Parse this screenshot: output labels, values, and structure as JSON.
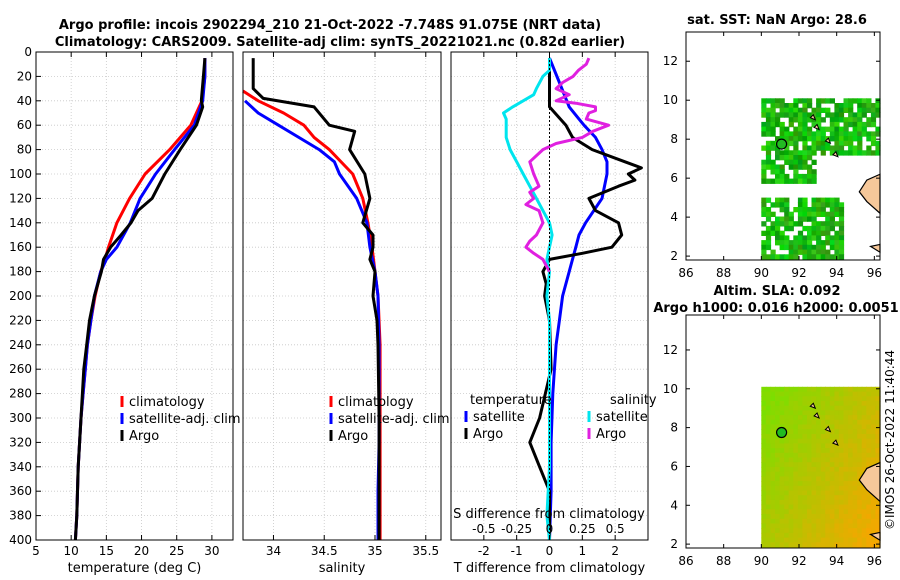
{
  "title": {
    "line1": "Argo profile: incois 2902294_210 21-Oct-2022 -7.748S 91.075E (NRT data)",
    "line2": "Climatology: CARS2009. Satellite-adj clim: synTS_20221021.nc (0.82d earlier)"
  },
  "footer": "©IMOS 26-Oct-2022 11:40:44",
  "colors": {
    "climatology": "#ff0000",
    "satellite": "#0000ff",
    "argo": "#000000",
    "cyan": "#00e5ee",
    "magenta": "#e020e0",
    "land": "#f6c89a"
  },
  "chart_data": [
    {
      "type": "line",
      "id": "temperature",
      "xlabel": "temperature (deg C)",
      "ylabel": "",
      "xlim": [
        5,
        33
      ],
      "ylim": [
        400,
        0
      ],
      "xticks": [
        5,
        10,
        15,
        20,
        25,
        30
      ],
      "yticks": [
        0,
        20,
        40,
        60,
        80,
        100,
        120,
        140,
        160,
        180,
        200,
        220,
        240,
        260,
        280,
        300,
        320,
        340,
        360,
        380,
        400
      ],
      "legend": [
        "climatology",
        "satellite-adj. clim",
        "Argo"
      ],
      "series": [
        {
          "name": "climatology",
          "color": "#ff0000",
          "depth": [
            5,
            20,
            40,
            60,
            80,
            100,
            120,
            140,
            160,
            170,
            180,
            200,
            220,
            240,
            260,
            280,
            300,
            320,
            340,
            360,
            380,
            400
          ],
          "values": [
            29,
            29,
            28.6,
            27,
            24,
            20.5,
            18.3,
            16.5,
            15.3,
            14.8,
            14.2,
            13.4,
            12.8,
            12.3,
            12,
            11.7,
            11.4,
            11.2,
            11,
            10.9,
            10.8,
            10.6
          ]
        },
        {
          "name": "satellite-adj. clim",
          "color": "#0000ff",
          "depth": [
            5,
            20,
            40,
            60,
            80,
            100,
            120,
            140,
            160,
            170,
            180,
            200,
            220,
            240,
            260,
            280,
            300,
            320,
            340,
            360,
            380,
            400
          ],
          "values": [
            29,
            29,
            28.7,
            27.5,
            24.7,
            22,
            19.8,
            18.4,
            16.5,
            15,
            14.2,
            13.3,
            12.8,
            12.3,
            12,
            11.7,
            11.4,
            11.2,
            11,
            10.9,
            10.8,
            10.6
          ]
        },
        {
          "name": "Argo",
          "color": "#000000",
          "depth": [
            5,
            20,
            40,
            45,
            60,
            80,
            100,
            120,
            130,
            140,
            150,
            160,
            170,
            180,
            200,
            220,
            240,
            260,
            280,
            300,
            320,
            340,
            360,
            380,
            400
          ],
          "values": [
            29,
            28.8,
            28.5,
            28.7,
            27.8,
            25.5,
            23.3,
            21.5,
            19.5,
            18.5,
            17.1,
            15.6,
            14.6,
            14.3,
            13.3,
            12.6,
            12.2,
            11.8,
            11.6,
            11.4,
            11.2,
            11,
            10.9,
            10.8,
            10.6
          ]
        }
      ]
    },
    {
      "type": "line",
      "id": "salinity",
      "xlabel": "salinity",
      "xlim": [
        33.7,
        35.65
      ],
      "ylim": [
        400,
        0
      ],
      "xticks": [
        34,
        34.5,
        35,
        35.5
      ],
      "legend": [
        "climatology",
        "satellite-adj. clim",
        "Argo"
      ],
      "series": [
        {
          "name": "climatology",
          "color": "#ff0000",
          "depth": [
            32,
            40,
            50,
            60,
            70,
            80,
            100,
            120,
            140,
            160,
            180,
            200,
            240,
            280,
            320,
            360,
            400
          ],
          "values": [
            33.7,
            33.85,
            34.1,
            34.3,
            34.4,
            34.55,
            34.78,
            34.88,
            34.93,
            34.97,
            35.0,
            35.03,
            35.05,
            35.05,
            35.05,
            35.05,
            35.05
          ]
        },
        {
          "name": "satellite-adj. clim",
          "color": "#0000ff",
          "depth": [
            40,
            50,
            60,
            70,
            80,
            90,
            100,
            120,
            140,
            160,
            180,
            200,
            240,
            280,
            320,
            360,
            400
          ],
          "values": [
            33.72,
            33.85,
            34.05,
            34.25,
            34.45,
            34.6,
            34.65,
            34.82,
            34.92,
            34.95,
            35.0,
            35.03,
            35.04,
            35.04,
            35.04,
            35.03,
            35.03
          ]
        },
        {
          "name": "Argo",
          "color": "#000000",
          "depth": [
            5,
            30,
            38,
            45,
            55,
            60,
            65,
            80,
            100,
            120,
            140,
            150,
            160,
            170,
            180,
            200,
            220,
            240,
            300,
            360,
            400
          ],
          "values": [
            33.8,
            33.8,
            33.9,
            34.4,
            34.5,
            34.55,
            34.8,
            34.75,
            34.9,
            34.95,
            34.88,
            34.98,
            34.98,
            34.95,
            35.0,
            34.98,
            35.02,
            35.03,
            35.04,
            35.04,
            35.04
          ]
        }
      ]
    },
    {
      "type": "line",
      "id": "difference",
      "xlabel": "T difference from climatology",
      "xlim": [
        -3,
        3
      ],
      "ylim": [
        400,
        0
      ],
      "xticks": [
        -2,
        -1,
        0,
        1,
        2
      ],
      "secondary_axis": {
        "label": "S difference from climatology",
        "ticks": [
          -0.5,
          -0.25,
          0,
          0.25,
          0.5
        ],
        "tick_labels": [
          "-0.5",
          "-0.25",
          "0",
          "0.25",
          "0.5"
        ]
      },
      "legend_left_title": "temperature",
      "legend_left": [
        "satellite",
        "Argo"
      ],
      "legend_right_title": "salinity",
      "legend_right": [
        "satellite",
        "Argo"
      ],
      "series": [
        {
          "name": "temperature satellite",
          "color": "#0000ff",
          "depth": [
            5,
            25,
            45,
            55,
            60,
            70,
            80,
            90,
            100,
            120,
            140,
            150,
            160,
            170,
            180,
            200,
            220,
            240,
            280,
            320,
            360,
            400
          ],
          "values": [
            0,
            0.3,
            0.6,
            0.9,
            1.05,
            1.4,
            1.6,
            1.75,
            1.75,
            1.6,
            1.1,
            0.9,
            0.8,
            0.7,
            0.6,
            0.4,
            0.3,
            0.2,
            0.1,
            0.05,
            0.05,
            0
          ]
        },
        {
          "name": "temperature Argo",
          "color": "#000000",
          "depth": [
            5,
            20,
            40,
            45,
            60,
            70,
            80,
            90,
            95,
            100,
            105,
            110,
            120,
            130,
            140,
            150,
            160,
            165,
            170,
            180,
            190,
            200,
            220,
            260,
            300,
            320,
            340,
            360,
            380,
            400
          ],
          "values": [
            0,
            0,
            0,
            0,
            0.5,
            0.7,
            1.3,
            2.3,
            2.8,
            2.4,
            2.6,
            2.1,
            1.2,
            1.4,
            2.1,
            2.2,
            1.9,
            1,
            0,
            -0.2,
            -0.1,
            -0.15,
            0,
            0.05,
            -0.3,
            -0.6,
            -0.3,
            0,
            0,
            0
          ]
        },
        {
          "name": "salinity satellite",
          "color": "#00e5ee",
          "depth": [
            5,
            15,
            20,
            30,
            35,
            40,
            45,
            50,
            55,
            60,
            70,
            80,
            90,
            100,
            110,
            120,
            130,
            140,
            150,
            160,
            170,
            180,
            200,
            220,
            260,
            300,
            340,
            380,
            400
          ],
          "values": [
            0,
            0,
            -0.05,
            -0.1,
            -0.12,
            -0.2,
            -0.28,
            -0.35,
            -0.33,
            -0.33,
            -0.33,
            -0.3,
            -0.25,
            -0.2,
            -0.15,
            -0.1,
            -0.05,
            0,
            0.02,
            0,
            -0.02,
            0,
            -0.02,
            0,
            0,
            0,
            0,
            -0.02,
            0
          ]
        },
        {
          "name": "salinity Argo",
          "color": "#e020e0",
          "depth": [
            5,
            10,
            15,
            20,
            25,
            30,
            35,
            40,
            42,
            45,
            48,
            50,
            55,
            60,
            65,
            70,
            75,
            80,
            90,
            100,
            110,
            115,
            120,
            125,
            130,
            140,
            150,
            155,
            160,
            165,
            170,
            180
          ],
          "values": [
            0.3,
            0.28,
            0.22,
            0.18,
            0.1,
            0.05,
            0.15,
            0.05,
            0.2,
            0.35,
            0.35,
            0.3,
            0.28,
            0.45,
            0.33,
            0.25,
            0.05,
            -0.05,
            -0.15,
            -0.12,
            -0.08,
            -0.15,
            -0.12,
            -0.18,
            -0.08,
            -0.05,
            -0.1,
            -0.15,
            -0.18,
            -0.12,
            -0.05,
            0
          ]
        }
      ]
    },
    {
      "type": "heatmap",
      "id": "sst_map",
      "title": "sat. SST: NaN Argo: 28.6",
      "xlim": [
        86,
        96.3
      ],
      "ylim": [
        1.8,
        13.5
      ],
      "xticks": [
        86,
        88,
        90,
        92,
        94,
        96
      ],
      "yticks": [
        2,
        4,
        6,
        8,
        10,
        12
      ],
      "marker": {
        "lon": 91.075,
        "lat": 7.748
      }
    },
    {
      "type": "heatmap",
      "id": "sla_map",
      "title": "Altim. SLA: 0.092",
      "subtitle": "Argo h1000: 0.016 h2000: 0.0051",
      "xlim": [
        86,
        96.3
      ],
      "ylim": [
        1.8,
        13.8
      ],
      "xticks": [
        86,
        88,
        90,
        92,
        94,
        96
      ],
      "yticks": [
        2,
        4,
        6,
        8,
        10,
        12
      ],
      "marker": {
        "lon": 91.075,
        "lat": 7.748
      }
    }
  ]
}
